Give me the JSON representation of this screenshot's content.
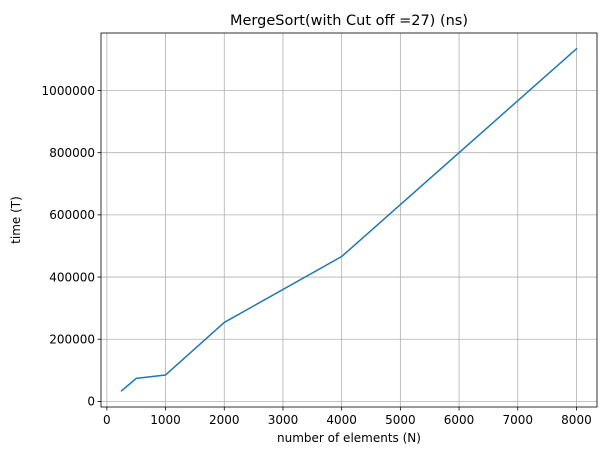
{
  "chart_data": {
    "type": "line",
    "title": "MergeSort(with Cut off =27) (ns)",
    "xlabel": "number of elements (N)",
    "ylabel": "time (T)",
    "xlim": [
      -100,
      8350
    ],
    "ylim": [
      -18000,
      1185000
    ],
    "xticks": [
      0,
      1000,
      2000,
      3000,
      4000,
      5000,
      6000,
      7000,
      8000
    ],
    "yticks": [
      0,
      200000,
      400000,
      600000,
      800000,
      1000000
    ],
    "grid": true,
    "series": [
      {
        "color": "#1f77b4",
        "x": [
          250,
          500,
          1000,
          2000,
          4000,
          8000
        ],
        "y": [
          34000,
          74000,
          85000,
          254000,
          466000,
          1134000
        ]
      }
    ]
  }
}
